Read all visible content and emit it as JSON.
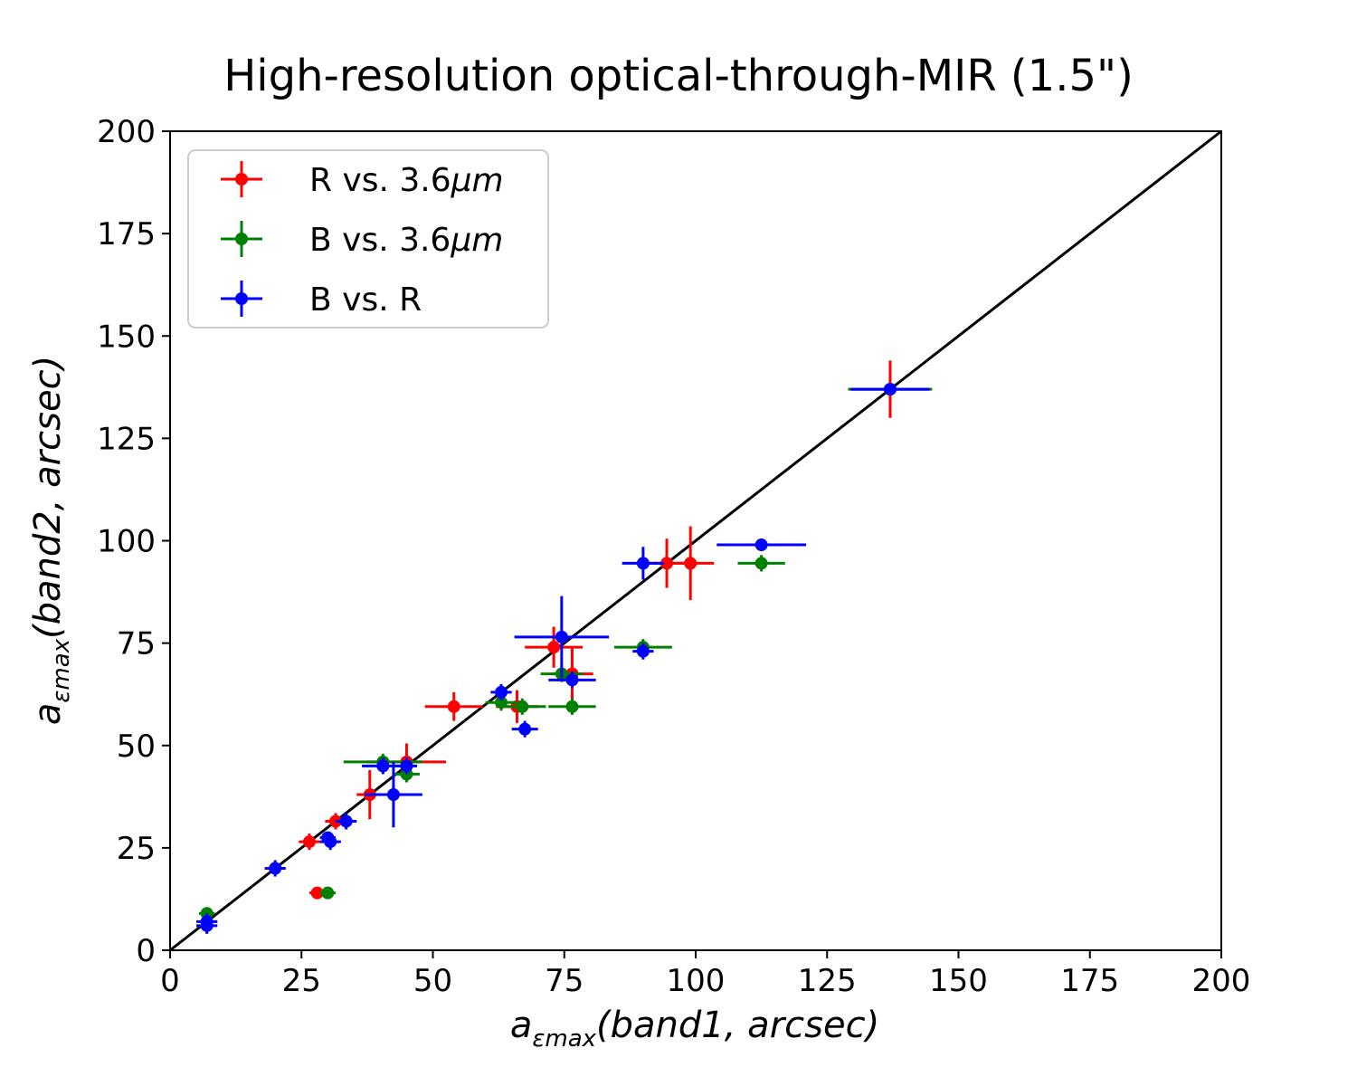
{
  "chart_data": {
    "type": "scatter",
    "title": "High-resolution optical-through-MIR (1.5\")",
    "xlabel": {
      "base": "a",
      "sub": "εmax",
      "rest": "(band1, arcsec)"
    },
    "ylabel": {
      "base": "a",
      "sub": "εmax",
      "rest": "(band2, arcsec)"
    },
    "xlim": [
      0,
      200
    ],
    "ylim": [
      0,
      200
    ],
    "xticks": [
      0,
      25,
      50,
      75,
      100,
      125,
      150,
      175,
      200
    ],
    "yticks": [
      0,
      25,
      50,
      75,
      100,
      125,
      150,
      175,
      200
    ],
    "grid": false,
    "legend_position": "upper-left",
    "identity_line": {
      "from": [
        0,
        0
      ],
      "to": [
        200,
        200
      ],
      "color": "#000000"
    },
    "series": [
      {
        "name": "R vs. 3.6μm",
        "label_prefix": "R vs. 3.6",
        "label_unit": "μm",
        "color": "#ff0000",
        "points": [
          {
            "x": 137,
            "y": 137,
            "xerr": 7.5,
            "yerr": 7
          },
          {
            "x": 99,
            "y": 94.5,
            "xerr": 4.5,
            "yerr": 9
          },
          {
            "x": 94.5,
            "y": 94.5,
            "xerr": 4,
            "yerr": 6
          },
          {
            "x": 73,
            "y": 74,
            "xerr": 5.5,
            "yerr": 5
          },
          {
            "x": 76.5,
            "y": 67.5,
            "xerr": 4,
            "yerr": 6.5
          },
          {
            "x": 54,
            "y": 59.5,
            "xerr": 5.5,
            "yerr": 3.5
          },
          {
            "x": 66,
            "y": 59.5,
            "xerr": 4,
            "yerr": 4
          },
          {
            "x": 45,
            "y": 46,
            "xerr": 7.5,
            "yerr": 4.5
          },
          {
            "x": 38,
            "y": 38,
            "xerr": 2.5,
            "yerr": 6
          },
          {
            "x": 31.5,
            "y": 31.5,
            "xerr": 2,
            "yerr": 2
          },
          {
            "x": 26.5,
            "y": 26.5,
            "xerr": 2,
            "yerr": 2
          },
          {
            "x": 28,
            "y": 14,
            "xerr": 1.5,
            "yerr": 1.5
          }
        ]
      },
      {
        "name": "B vs. 3.6μm",
        "label_prefix": "B vs. 3.6",
        "label_unit": "μm",
        "color": "#008000",
        "points": [
          {
            "x": 137,
            "y": 137,
            "xerr": 8,
            "yerr": 1
          },
          {
            "x": 112.5,
            "y": 94.5,
            "xerr": 4.5,
            "yerr": 2
          },
          {
            "x": 90,
            "y": 74,
            "xerr": 5.5,
            "yerr": 2
          },
          {
            "x": 74.5,
            "y": 67.5,
            "xerr": 4,
            "yerr": 2
          },
          {
            "x": 76.5,
            "y": 59.5,
            "xerr": 4.5,
            "yerr": 2
          },
          {
            "x": 67,
            "y": 59.5,
            "xerr": 4.5,
            "yerr": 2
          },
          {
            "x": 63,
            "y": 60.5,
            "xerr": 3,
            "yerr": 2
          },
          {
            "x": 40.5,
            "y": 46,
            "xerr": 7.5,
            "yerr": 2
          },
          {
            "x": 45,
            "y": 43,
            "xerr": 2.5,
            "yerr": 2
          },
          {
            "x": 30,
            "y": 14,
            "xerr": 1.5,
            "yerr": 1.5
          },
          {
            "x": 7,
            "y": 9,
            "xerr": 1.5,
            "yerr": 1.5
          }
        ]
      },
      {
        "name": "B vs. R",
        "label_prefix": "B vs. R",
        "label_unit": "",
        "color": "#0000ff",
        "points": [
          {
            "x": 137,
            "y": 137,
            "xerr": 7.5,
            "yerr": 1.5
          },
          {
            "x": 112.5,
            "y": 99,
            "xerr": 8.5,
            "yerr": 1.5
          },
          {
            "x": 90,
            "y": 94.5,
            "xerr": 4,
            "yerr": 4
          },
          {
            "x": 90,
            "y": 73,
            "xerr": 2,
            "yerr": 2
          },
          {
            "x": 74.5,
            "y": 76.5,
            "xerr": 9,
            "yerr": 10
          },
          {
            "x": 76.5,
            "y": 66,
            "xerr": 4.5,
            "yerr": 2
          },
          {
            "x": 63,
            "y": 63,
            "xerr": 2,
            "yerr": 2
          },
          {
            "x": 67.5,
            "y": 54,
            "xerr": 2.5,
            "yerr": 2
          },
          {
            "x": 40.5,
            "y": 45,
            "xerr": 4,
            "yerr": 2
          },
          {
            "x": 45,
            "y": 45,
            "xerr": 2,
            "yerr": 2
          },
          {
            "x": 42.5,
            "y": 38,
            "xerr": 5.5,
            "yerr": 8
          },
          {
            "x": 33.5,
            "y": 31.5,
            "xerr": 2,
            "yerr": 2
          },
          {
            "x": 30,
            "y": 27.5,
            "xerr": 1.5,
            "yerr": 1.5
          },
          {
            "x": 30.5,
            "y": 26.5,
            "xerr": 2,
            "yerr": 2
          },
          {
            "x": 20,
            "y": 20,
            "xerr": 2,
            "yerr": 2
          },
          {
            "x": 7,
            "y": 7,
            "xerr": 2,
            "yerr": 2
          },
          {
            "x": 7,
            "y": 6,
            "xerr": 2,
            "yerr": 2
          }
        ]
      }
    ]
  }
}
